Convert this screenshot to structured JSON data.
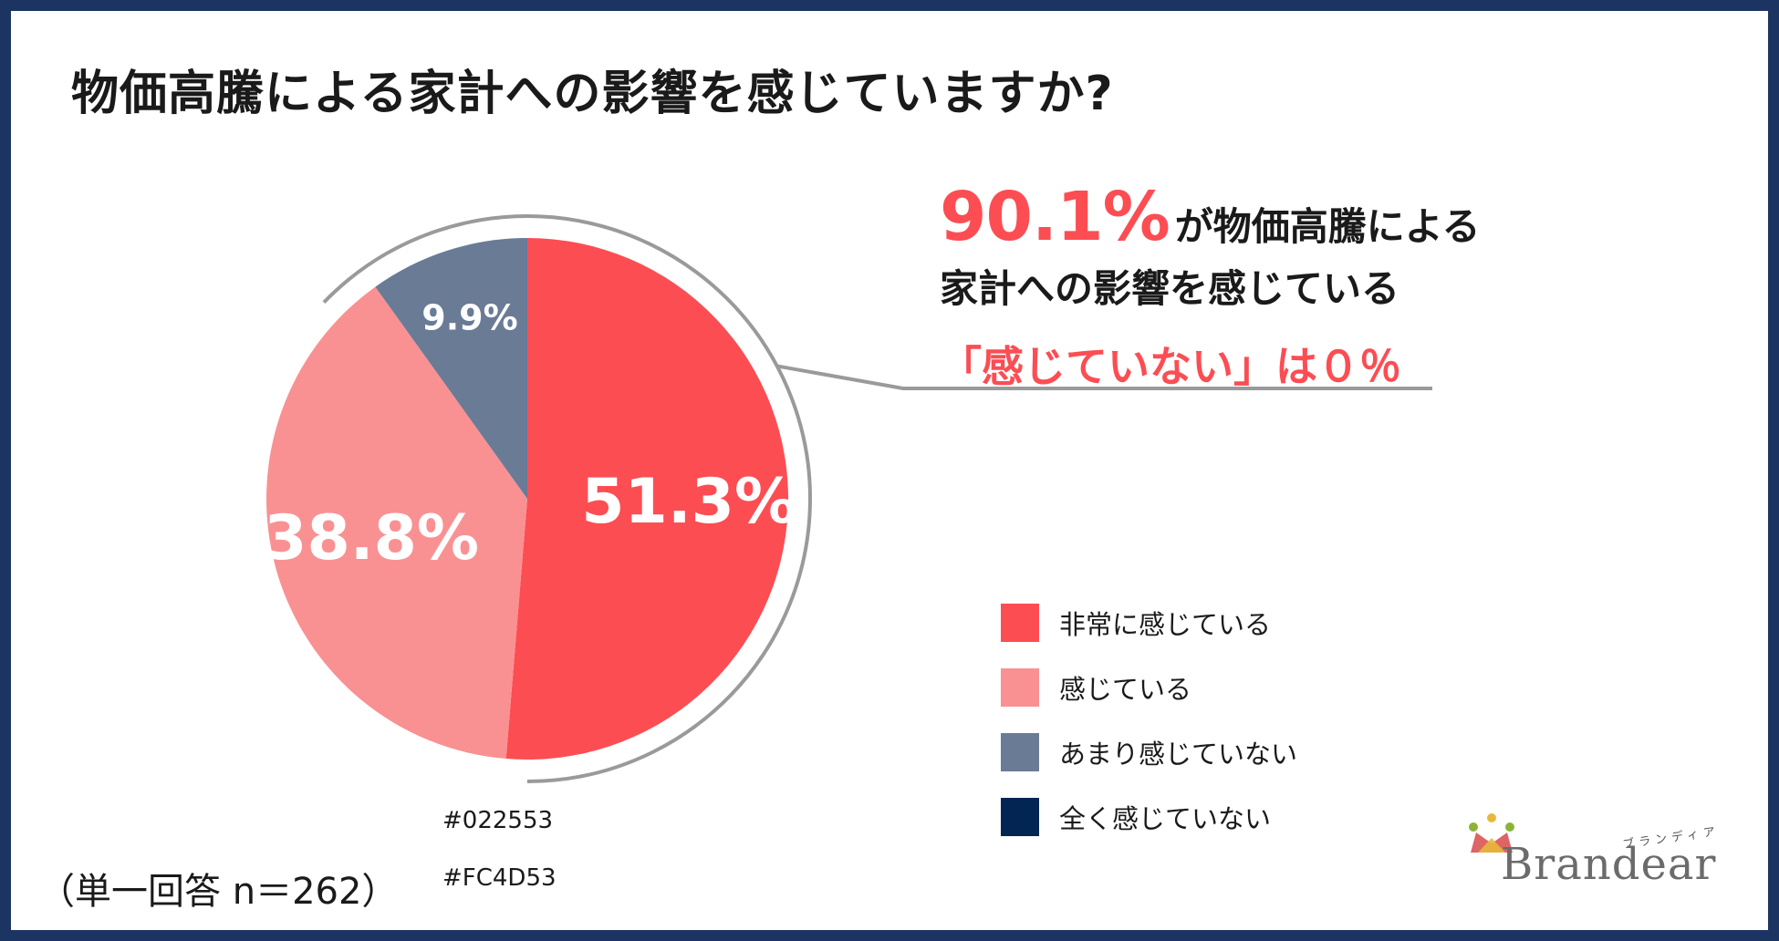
{
  "title": "物価高騰による家計への影響を感じていますか?",
  "callout": {
    "highlight_value": "90.1%",
    "line1_rest": "が物価高騰による",
    "line2": "家計への影響を感じている",
    "line3": "「感じていない」は０％"
  },
  "chart_data": {
    "type": "pie",
    "start_angle_deg": 0,
    "direction": "clockwise",
    "slices": [
      {
        "label": "非常に感じている",
        "value": 51.3,
        "display": "51.3%",
        "color": "#fc4d53"
      },
      {
        "label": "感じている",
        "value": 38.8,
        "display": "38.8%",
        "color": "#f99193"
      },
      {
        "label": "あまり感じていない",
        "value": 9.9,
        "display": "9.9%",
        "color": "#6a7b95"
      },
      {
        "label": "全く感じていない",
        "value": 0,
        "display": "",
        "color": "#022553"
      }
    ],
    "legend_position": "right",
    "bracket_color": "#9a9a9a"
  },
  "notes": {
    "color_a": "#022553",
    "color_b": "#FC4D53"
  },
  "sample_note": "（単一回答 n＝262）",
  "logo": {
    "text": "Brandear",
    "kana": "ブランディア"
  }
}
